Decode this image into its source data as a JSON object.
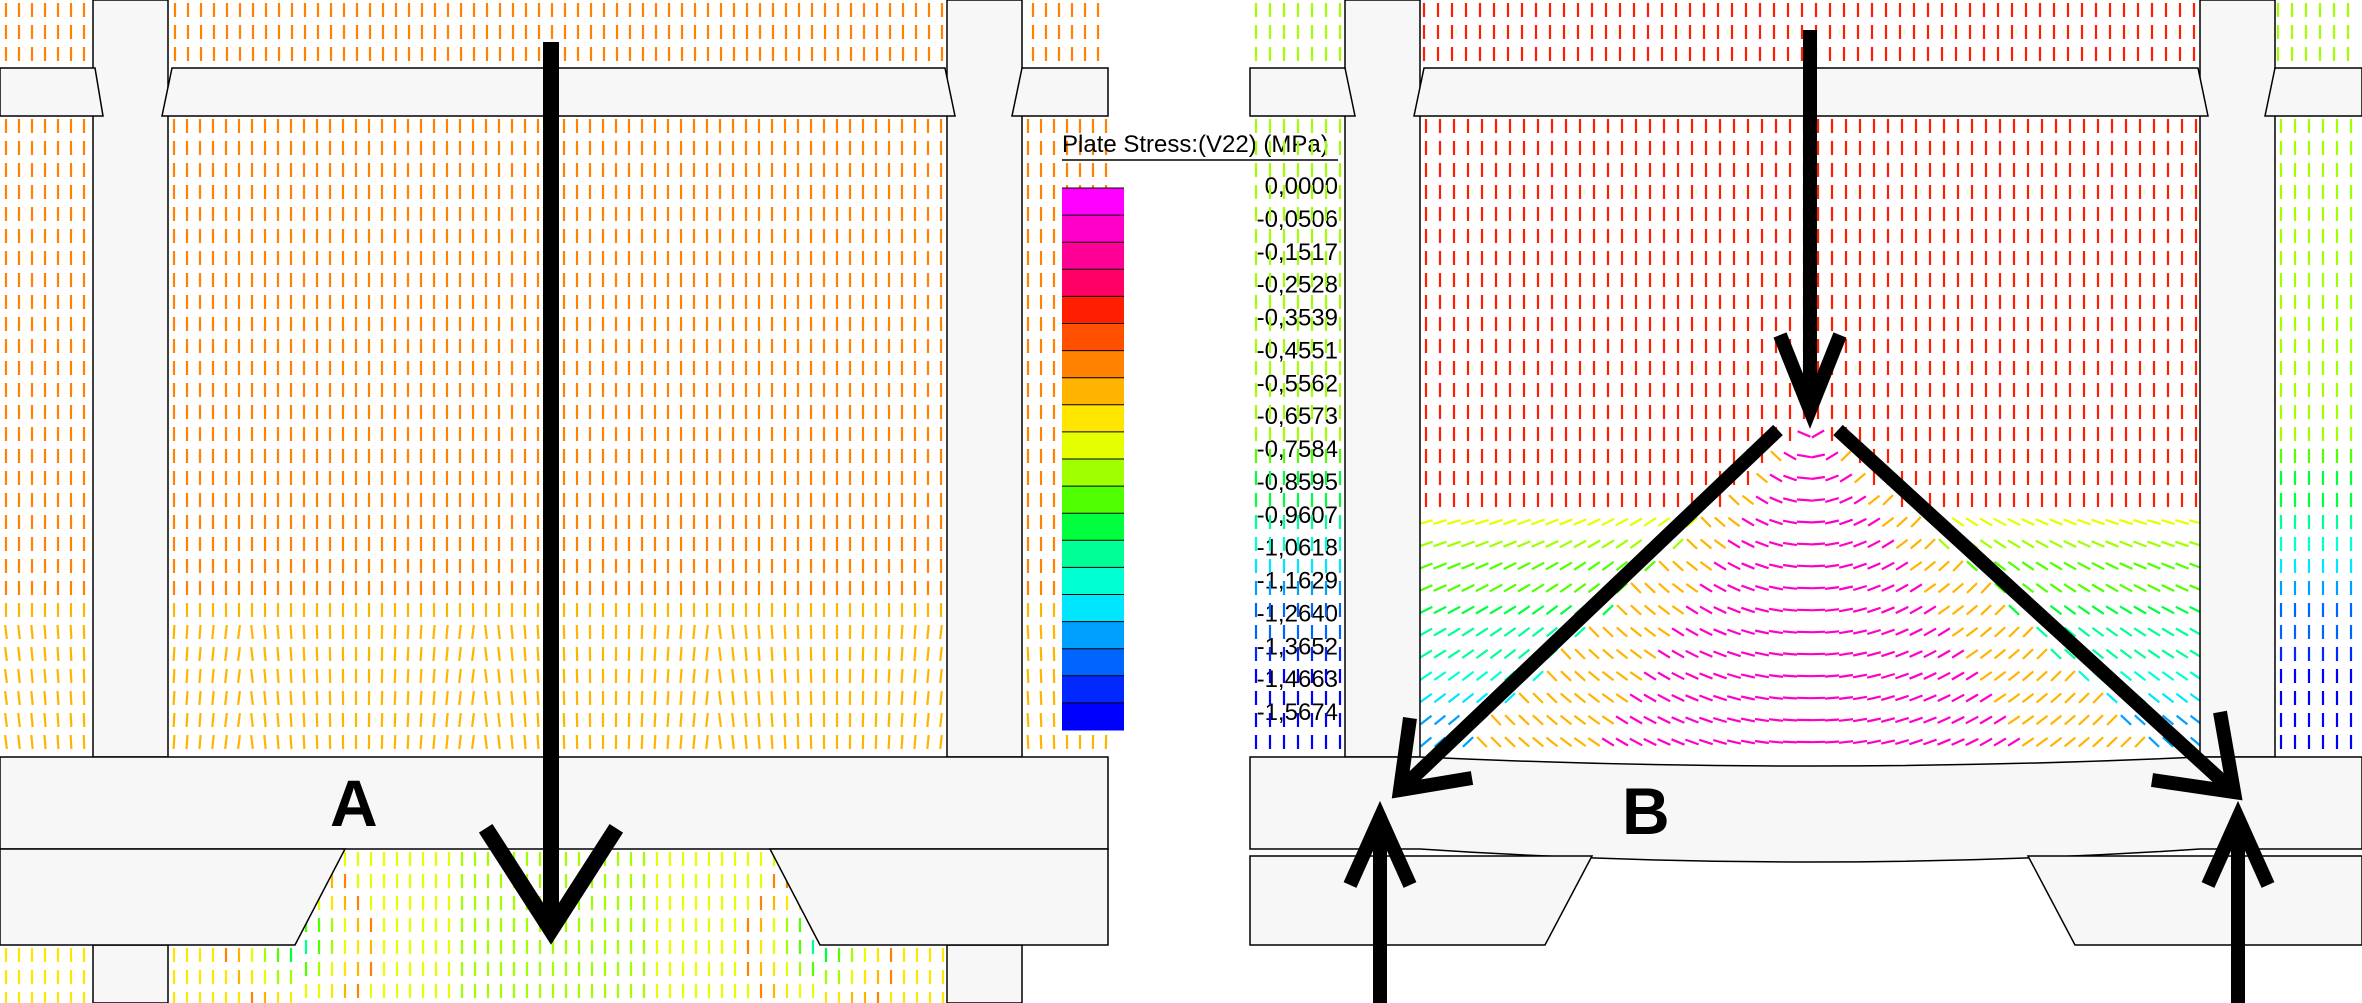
{
  "panels": [
    {
      "label": "A"
    },
    {
      "label": "B"
    }
  ],
  "legend": {
    "title": "Plate Stress:(V22) (MPa)",
    "ticks": [
      "0,0000",
      "-0,0506",
      "-0,1517",
      "-0,2528",
      "-0,3539",
      "-0,4551",
      "-0,5562",
      "-0,6573",
      "-0,7584",
      "-0,8595",
      "-0,9607",
      "-1,0618",
      "-1,1629",
      "-1,2640",
      "-1,3652",
      "-1,4663",
      "-1,5674"
    ],
    "colors": [
      "#ff00ff",
      "#ff00c8",
      "#ff0096",
      "#ff0064",
      "#ff1e00",
      "#ff5000",
      "#ff8200",
      "#ffb400",
      "#ffe600",
      "#e6ff00",
      "#a0ff00",
      "#50ff00",
      "#00ff3c",
      "#00ff96",
      "#00ffd2",
      "#00e6ff",
      "#00a0ff",
      "#0064ff",
      "#0028ff",
      "#0000ff"
    ]
  },
  "colors": {
    "strut": "#f7f7f7",
    "outline": "#000000",
    "arrow": "#000000",
    "field_dominant_left": "#f06428",
    "field_dominant_right": "#ff3c6e"
  }
}
